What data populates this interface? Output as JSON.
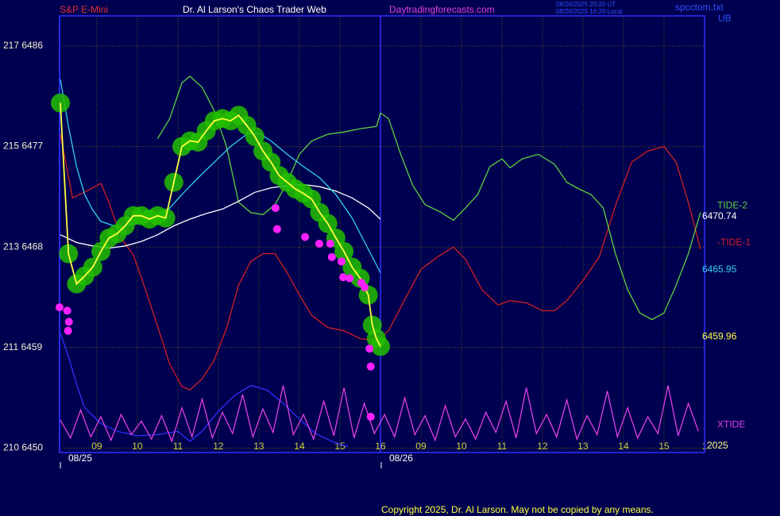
{
  "chart_data": {
    "type": "line",
    "instrument": "S&P E-Mini",
    "title": "Dr. Al Larson's Chaos Trader Web",
    "site": "Daytradingforecasts.com",
    "timestamps": [
      "08/26/2025 20:20 UT",
      "08/26/2025 16:20 Local"
    ],
    "file": "spcctom.txt",
    "corner_label": "UB",
    "year": "2025",
    "copyright": "Copyright 2025, Dr. Al Larson. May not be copied by any means.",
    "xlim": [
      8.08,
      24.0
    ],
    "ylim": [
      6449.6,
      6488.7
    ],
    "grid": true,
    "yticks": [
      {
        "value": 6486,
        "label": "217  6486"
      },
      {
        "value": 6477,
        "label": "215  6477"
      },
      {
        "value": 6468,
        "label": "213  6468"
      },
      {
        "value": 6459,
        "label": "211  6459"
      },
      {
        "value": 6450,
        "label": "210  6450"
      }
    ],
    "xticks": [
      {
        "value": 9,
        "label": "09"
      },
      10,
      11,
      12,
      13,
      14,
      15,
      16,
      {
        "value": 17,
        "label": "09"
      },
      {
        "value": 18,
        "label": "10"
      },
      {
        "value": 19,
        "label": "11"
      },
      {
        "value": 20,
        "label": "12"
      },
      {
        "value": 21,
        "label": "13"
      },
      {
        "value": 22,
        "label": "14"
      },
      {
        "value": 23,
        "label": "15"
      },
      {
        "value": 24,
        "label": "1"
      }
    ],
    "date_ticks": [
      {
        "value": 8.08,
        "label": "08/25"
      },
      {
        "value": 16.0,
        "label": "08/26"
      }
    ],
    "series": [
      {
        "color": "#3030ff",
        "x": [
          8.1,
          8.3,
          8.5,
          8.7,
          9.1,
          9.5,
          10.0,
          10.5,
          11.0,
          11.3,
          11.6,
          12.0,
          12.4,
          12.8,
          13.2,
          13.6,
          14.0,
          14.4,
          14.8,
          15.2
        ],
        "values": [
          6460.3,
          6458.2,
          6455.7,
          6453.6,
          6452.2,
          6451.5,
          6451.1,
          6451.2,
          6451.5,
          6450.6,
          6451.5,
          6453.3,
          6454.7,
          6455.6,
          6455.2,
          6454.0,
          6452.6,
          6451.3,
          6450.6,
          6450.1
        ]
      },
      {
        "name": "-TIDE-1",
        "color": "#d02020",
        "x": [
          8.1,
          8.4,
          8.8,
          9.1,
          9.3,
          9.6,
          9.9,
          10.2,
          10.5,
          10.8,
          11.1,
          11.3,
          11.6,
          11.9,
          12.2,
          12.5,
          12.8,
          13.1,
          13.4,
          13.7,
          14.0,
          14.3,
          14.7,
          15.1,
          15.5,
          15.9,
          16.2,
          16.6,
          17.0,
          17.4,
          17.8,
          18.1,
          18.5,
          18.9,
          19.2,
          19.6,
          20.0,
          20.3,
          20.6,
          21.0,
          21.4,
          21.8,
          22.2,
          22.6,
          23.0,
          23.3,
          23.6,
          23.9
        ],
        "values": [
          6478.1,
          6472.4,
          6473.1,
          6473.7,
          6472.0,
          6468.8,
          6467.3,
          6464.2,
          6460.9,
          6457.5,
          6455.5,
          6455.2,
          6456.2,
          6457.9,
          6460.7,
          6464.6,
          6466.7,
          6467.4,
          6467.4,
          6465.7,
          6463.7,
          6461.9,
          6460.8,
          6460.5,
          6459.8,
          6459.6,
          6460.5,
          6463.3,
          6466.0,
          6467.1,
          6468.0,
          6466.9,
          6464.2,
          6462.8,
          6463.2,
          6463.0,
          6462.3,
          6462.3,
          6463.2,
          6465.0,
          6467.1,
          6471.7,
          6475.6,
          6476.6,
          6477.0,
          6475.6,
          6472.0,
          6467.8
        ]
      },
      {
        "name": "TIDE-2",
        "color": "#60d040",
        "x": [
          10.5,
          10.8,
          11.1,
          11.3,
          11.6,
          11.9,
          12.2,
          12.5,
          12.8,
          13.1,
          13.4,
          13.7,
          14.0,
          14.3,
          14.7,
          15.1,
          15.5,
          15.9,
          16.0,
          16.2,
          16.5,
          16.8,
          17.1,
          17.5,
          17.8,
          18.1,
          18.4,
          18.7,
          19.0,
          19.2,
          19.5,
          19.9,
          20.3,
          20.6,
          20.9,
          21.2,
          21.5,
          21.8,
          22.1,
          22.4,
          22.7,
          23.0,
          23.3,
          23.6,
          23.9
        ],
        "values": [
          6477.7,
          6479.5,
          6482.7,
          6483.3,
          6482.3,
          6480.2,
          6477.0,
          6472.0,
          6471.1,
          6470.9,
          6471.8,
          6473.8,
          6476.3,
          6477.5,
          6478.1,
          6478.3,
          6478.6,
          6478.8,
          6480.0,
          6479.5,
          6476.3,
          6473.5,
          6471.8,
          6471.1,
          6470.4,
          6471.5,
          6472.7,
          6475.2,
          6475.9,
          6475.1,
          6475.9,
          6476.3,
          6475.4,
          6473.8,
          6473.2,
          6472.7,
          6471.5,
          6467.4,
          6464.2,
          6462.1,
          6461.5,
          6462.1,
          6464.6,
          6467.4,
          6471.1
        ]
      },
      {
        "name": "XTIDE",
        "color": "#e040e0",
        "x": [
          8.1,
          8.35,
          8.6,
          8.85,
          9.1,
          9.35,
          9.6,
          9.85,
          10.1,
          10.35,
          10.6,
          10.85,
          11.1,
          11.35,
          11.6,
          11.85,
          12.1,
          12.35,
          12.6,
          12.85,
          13.1,
          13.35,
          13.6,
          13.85,
          14.1,
          14.35,
          14.6,
          14.85,
          15.1,
          15.35,
          15.6,
          15.85,
          16.1,
          16.35,
          16.6,
          16.85,
          17.1,
          17.35,
          17.6,
          17.85,
          18.1,
          18.35,
          18.6,
          18.85,
          19.1,
          19.35,
          19.6,
          19.85,
          20.1,
          20.35,
          20.6,
          20.85,
          21.1,
          21.35,
          21.6,
          21.85,
          22.1,
          22.35,
          22.6,
          22.85,
          23.1,
          23.35,
          23.6,
          23.85
        ],
        "values": [
          6452.5,
          6450.9,
          6453.4,
          6451.0,
          6452.8,
          6450.7,
          6453.0,
          6451.2,
          6452.4,
          6450.8,
          6452.9,
          6450.6,
          6453.6,
          6451.0,
          6454.4,
          6450.9,
          6453.2,
          6451.3,
          6454.8,
          6451.0,
          6453.5,
          6451.4,
          6455.6,
          6451.2,
          6453.0,
          6450.8,
          6454.2,
          6451.1,
          6455.4,
          6450.9,
          6454.0,
          6451.3,
          6453.0,
          6451.0,
          6454.5,
          6451.2,
          6452.9,
          6450.7,
          6453.8,
          6451.0,
          6452.6,
          6450.8,
          6453.2,
          6451.4,
          6454.2,
          6450.9,
          6455.4,
          6451.3,
          6453.0,
          6451.0,
          6454.3,
          6450.8,
          6452.9,
          6451.2,
          6455.1,
          6451.0,
          6453.6,
          6450.9,
          6452.8,
          6451.3,
          6455.6,
          6451.1,
          6454.0,
          6451.5
        ]
      },
      {
        "color": "#ffffff",
        "end_value": 6470.74,
        "x": [
          8.1,
          8.5,
          8.9,
          9.3,
          9.7,
          10.1,
          10.5,
          10.9,
          11.3,
          11.7,
          12.1,
          12.5,
          12.9,
          13.3,
          13.7,
          14.1,
          14.5,
          14.9,
          15.3,
          15.7,
          16.0
        ],
        "values": [
          6469.1,
          6468.4,
          6468.1,
          6467.9,
          6468.1,
          6468.5,
          6469.1,
          6469.9,
          6470.5,
          6471.0,
          6471.4,
          6472.1,
          6472.9,
          6473.3,
          6473.5,
          6473.6,
          6473.4,
          6473.0,
          6472.4,
          6471.5,
          6470.5
        ]
      },
      {
        "color": "#30d0f0",
        "end_value": 6465.95,
        "x": [
          8.1,
          8.3,
          8.5,
          8.7,
          8.9,
          9.1,
          9.5,
          9.9,
          10.3,
          10.7,
          11.1,
          11.5,
          11.9,
          12.3,
          12.7,
          13.0,
          13.3,
          13.7,
          14.1,
          14.5,
          14.9,
          15.3,
          15.7,
          16.0
        ],
        "values": [
          6483.0,
          6478.8,
          6475.2,
          6472.7,
          6471.3,
          6470.3,
          6469.8,
          6470.0,
          6470.4,
          6471.1,
          6472.7,
          6474.2,
          6475.6,
          6477.0,
          6478.1,
          6478.2,
          6477.5,
          6476.3,
          6475.2,
          6474.2,
          6472.7,
          6470.6,
          6467.8,
          6465.7
        ]
      },
      {
        "color": "#ffff40",
        "halo_color": "#22c000",
        "end_value": 6459.96,
        "x": [
          8.1,
          8.3,
          8.5,
          8.7,
          8.9,
          9.1,
          9.3,
          9.5,
          9.7,
          9.9,
          10.1,
          10.3,
          10.5,
          10.7,
          10.9,
          11.1,
          11.3,
          11.5,
          11.7,
          11.9,
          12.1,
          12.3,
          12.5,
          12.7,
          12.9,
          13.1,
          13.3,
          13.5,
          13.7,
          13.9,
          14.1,
          14.3,
          14.5,
          14.7,
          14.9,
          15.1,
          15.3,
          15.5,
          15.7,
          15.8,
          15.9,
          16.0
        ],
        "values": [
          6480.9,
          6467.4,
          6464.7,
          6465.4,
          6466.2,
          6467.6,
          6468.8,
          6469.2,
          6469.9,
          6470.8,
          6470.8,
          6470.5,
          6470.8,
          6470.6,
          6473.8,
          6477.0,
          6477.5,
          6477.4,
          6478.4,
          6479.3,
          6479.5,
          6479.3,
          6479.8,
          6478.9,
          6477.9,
          6476.6,
          6475.6,
          6474.4,
          6473.8,
          6473.2,
          6472.8,
          6472.3,
          6471.1,
          6470.1,
          6468.8,
          6467.6,
          6466.2,
          6465.2,
          6463.7,
          6461.0,
          6459.8,
          6459.1
        ]
      },
      {
        "style": "dots",
        "color": "#ff20ff",
        "x": [
          8.08,
          8.27,
          8.31,
          8.29,
          13.41,
          13.45,
          14.14,
          14.49,
          14.76,
          14.8,
          15.04,
          15.08,
          15.24,
          15.53,
          15.61,
          15.73,
          15.76,
          15.76
        ],
        "values": [
          6462.6,
          6462.3,
          6461.3,
          6460.5,
          6471.5,
          6469.6,
          6468.9,
          6468.3,
          6468.3,
          6467.1,
          6466.7,
          6465.3,
          6465.2,
          6464.8,
          6464.4,
          6458.9,
          6457.3,
          6452.8
        ]
      }
    ]
  }
}
